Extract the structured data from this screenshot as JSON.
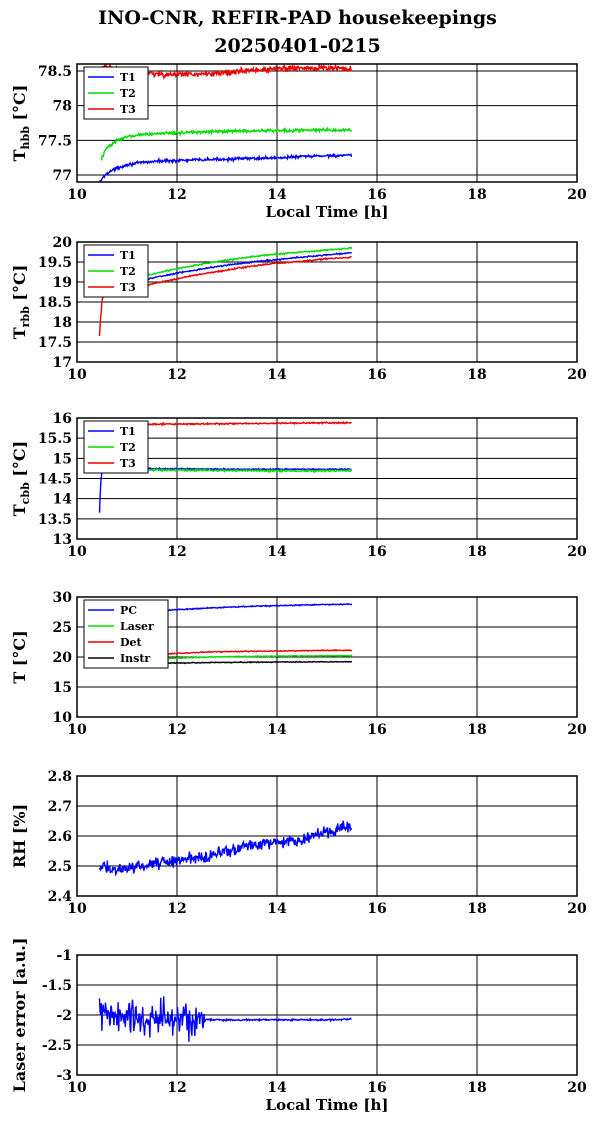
{
  "title": "INO-CNR, REFIR-PAD housekeepings",
  "subtitle": "20250401-0215",
  "chart_data": [
    {
      "type": "line",
      "ylabel": "T_hbb [°C]",
      "ylabel_main": "T",
      "ylabel_sub": "hbb",
      "ylabel_unit": " [°C]",
      "xlabel": "Local Time [h]",
      "xlim": [
        10,
        20
      ],
      "ylim": [
        76.9,
        78.6
      ],
      "xticks": [
        "10",
        "12",
        "14",
        "16",
        "18",
        "20"
      ],
      "yticks": [
        {
          "v": 77,
          "label": "77"
        },
        {
          "v": 77.5,
          "label": "77.5"
        },
        {
          "v": 78,
          "label": "78"
        },
        {
          "v": 78.5,
          "label": "78.5"
        }
      ],
      "grid": true,
      "legend": "top-left",
      "series": [
        {
          "name": "T1",
          "color": "#0000ff",
          "noise": 0.015,
          "x": [
            10.45,
            10.6,
            10.8,
            11.0,
            11.3,
            11.6,
            12.0,
            12.5,
            13.0,
            14.0,
            15.0,
            15.5
          ],
          "y": [
            76.9,
            77.03,
            77.1,
            77.15,
            77.18,
            77.2,
            77.21,
            77.22,
            77.23,
            77.25,
            77.28,
            77.28
          ]
        },
        {
          "name": "T2",
          "color": "#00dd00",
          "noise": 0.015,
          "x": [
            10.48,
            10.6,
            10.8,
            11.0,
            11.3,
            11.6,
            12.0,
            12.5,
            13.0,
            14.0,
            15.0,
            15.5
          ],
          "y": [
            77.22,
            77.4,
            77.5,
            77.55,
            77.58,
            77.6,
            77.61,
            77.62,
            77.63,
            77.64,
            77.65,
            77.65
          ]
        },
        {
          "name": "T3",
          "color": "#ee0000",
          "noise": 0.03,
          "x": [
            10.5,
            11.0,
            11.5,
            12.0,
            12.5,
            13.0,
            13.5,
            14.0,
            14.5,
            15.0,
            15.5
          ],
          "y": [
            78.56,
            78.5,
            78.46,
            78.45,
            78.45,
            78.48,
            78.51,
            78.53,
            78.54,
            78.54,
            78.53
          ]
        }
      ]
    },
    {
      "type": "line",
      "ylabel": "T_rbb [°C]",
      "ylabel_main": "T",
      "ylabel_sub": "rbb",
      "ylabel_unit": " [°C]",
      "xlabel": "",
      "xlim": [
        10,
        20
      ],
      "ylim": [
        17,
        20
      ],
      "xticks": [
        "10",
        "12",
        "14",
        "16",
        "18",
        "20"
      ],
      "yticks": [
        {
          "v": 17,
          "label": "17"
        },
        {
          "v": 17.5,
          "label": "17.5"
        },
        {
          "v": 18,
          "label": "18"
        },
        {
          "v": 18.5,
          "label": "18.5"
        },
        {
          "v": 19,
          "label": "19"
        },
        {
          "v": 19.5,
          "label": "19.5"
        },
        {
          "v": 20,
          "label": "20"
        }
      ],
      "grid": true,
      "legend": "top-left",
      "series": [
        {
          "name": "T1",
          "color": "#0000ff",
          "noise": 0.012,
          "x": [
            10.48,
            10.5,
            11.0,
            11.5,
            12.0,
            12.5,
            13.0,
            13.5,
            14.0,
            14.5,
            15.0,
            15.5
          ],
          "y": [
            18.7,
            18.85,
            18.95,
            19.1,
            19.22,
            19.33,
            19.42,
            19.5,
            19.56,
            19.62,
            19.68,
            19.73
          ]
        },
        {
          "name": "T2",
          "color": "#00dd00",
          "noise": 0.012,
          "x": [
            10.48,
            10.5,
            11.0,
            11.5,
            12.0,
            12.5,
            13.0,
            13.5,
            14.0,
            14.5,
            15.0,
            15.5
          ],
          "y": [
            18.75,
            18.9,
            19.05,
            19.2,
            19.33,
            19.45,
            19.55,
            19.63,
            19.7,
            19.75,
            19.8,
            19.85
          ]
        },
        {
          "name": "T3",
          "color": "#ee0000",
          "noise": 0.012,
          "x": [
            10.45,
            10.47,
            10.49,
            10.5,
            10.55,
            11.0,
            11.5,
            12.0,
            12.5,
            13.0,
            13.5,
            14.0,
            14.5,
            15.0,
            15.5
          ],
          "y": [
            17.65,
            18.1,
            18.3,
            18.55,
            18.7,
            18.8,
            18.95,
            19.08,
            19.2,
            19.3,
            19.4,
            19.47,
            19.52,
            19.58,
            19.62
          ]
        }
      ]
    },
    {
      "type": "line",
      "ylabel": "T_cbb [°C]",
      "ylabel_main": "T",
      "ylabel_sub": "cbb",
      "ylabel_unit": " [°C]",
      "xlabel": "",
      "xlim": [
        10,
        20
      ],
      "ylim": [
        13,
        16
      ],
      "xticks": [
        "10",
        "12",
        "14",
        "16",
        "18",
        "20"
      ],
      "yticks": [
        {
          "v": 13,
          "label": "13"
        },
        {
          "v": 13.5,
          "label": "13.5"
        },
        {
          "v": 14,
          "label": "14"
        },
        {
          "v": 14.5,
          "label": "14.5"
        },
        {
          "v": 15,
          "label": "15"
        },
        {
          "v": 15.5,
          "label": "15.5"
        },
        {
          "v": 16,
          "label": "16"
        }
      ],
      "grid": true,
      "legend": "top-left",
      "series": [
        {
          "name": "T1",
          "color": "#0000ff",
          "noise": 0.01,
          "x": [
            10.45,
            10.47,
            10.49,
            10.52,
            11.0,
            12.0,
            13.0,
            14.0,
            15.0,
            15.5
          ],
          "y": [
            13.65,
            14.3,
            14.6,
            14.75,
            14.75,
            14.74,
            14.73,
            14.73,
            14.73,
            14.73
          ]
        },
        {
          "name": "T2",
          "color": "#00dd00",
          "noise": 0.015,
          "x": [
            10.5,
            11.0,
            12.0,
            13.0,
            14.0,
            15.0,
            15.5
          ],
          "y": [
            14.74,
            14.72,
            14.71,
            14.7,
            14.69,
            14.69,
            14.69
          ]
        },
        {
          "name": "T3",
          "color": "#ee0000",
          "noise": 0.012,
          "x": [
            10.5,
            11.0,
            12.0,
            13.0,
            14.0,
            15.0,
            15.5
          ],
          "y": [
            15.83,
            15.84,
            15.85,
            15.86,
            15.87,
            15.88,
            15.88
          ]
        }
      ]
    },
    {
      "type": "line",
      "ylabel": "T [°C]",
      "ylabel_main": "T [°C]",
      "ylabel_sub": "",
      "ylabel_unit": "",
      "xlabel": "",
      "xlim": [
        10,
        20
      ],
      "ylim": [
        10,
        30
      ],
      "xticks": [
        "10",
        "12",
        "14",
        "16",
        "18",
        "20"
      ],
      "yticks": [
        {
          "v": 10,
          "label": "10"
        },
        {
          "v": 15,
          "label": "15"
        },
        {
          "v": 20,
          "label": "20"
        },
        {
          "v": 25,
          "label": "25"
        },
        {
          "v": 30,
          "label": "30"
        }
      ],
      "grid": true,
      "legend": "top-left",
      "series": [
        {
          "name": "PC",
          "color": "#0000ff",
          "noise": 0.06,
          "x": [
            11.3,
            11.5,
            12.0,
            12.5,
            13.0,
            13.5,
            14.0,
            14.5,
            15.0,
            15.5
          ],
          "y": [
            27.4,
            27.6,
            27.9,
            28.1,
            28.3,
            28.45,
            28.55,
            28.65,
            28.75,
            28.8
          ]
        },
        {
          "name": "Laser",
          "color": "#00dd00",
          "noise": 0.05,
          "x": [
            11.3,
            11.5,
            12.0,
            12.5,
            13.0,
            14.0,
            15.0,
            15.5
          ],
          "y": [
            19.4,
            19.6,
            19.8,
            19.95,
            20.05,
            20.15,
            20.2,
            20.2
          ]
        },
        {
          "name": "Det",
          "color": "#ee0000",
          "noise": 0.05,
          "x": [
            11.3,
            11.5,
            12.0,
            12.5,
            13.0,
            14.0,
            15.0,
            15.5
          ],
          "y": [
            20.2,
            20.4,
            20.6,
            20.8,
            20.9,
            21.0,
            21.1,
            21.1
          ]
        },
        {
          "name": "Instr",
          "color": "#000000",
          "noise": 0.05,
          "x": [
            11.3,
            12.0,
            12.5,
            13.0,
            14.0,
            15.0,
            15.5
          ],
          "y": [
            18.9,
            19.0,
            19.05,
            19.1,
            19.15,
            19.2,
            19.2
          ]
        }
      ]
    },
    {
      "type": "line",
      "ylabel": "RH [%]",
      "ylabel_main": "RH [%]",
      "ylabel_sub": "",
      "ylabel_unit": "",
      "xlabel": "",
      "xlim": [
        10,
        20
      ],
      "ylim": [
        2.4,
        2.8
      ],
      "xticks": [
        "10",
        "12",
        "14",
        "16",
        "18",
        "20"
      ],
      "yticks": [
        {
          "v": 2.4,
          "label": "2.4"
        },
        {
          "v": 2.5,
          "label": "2.5"
        },
        {
          "v": 2.6,
          "label": "2.6"
        },
        {
          "v": 2.7,
          "label": "2.7"
        },
        {
          "v": 2.8,
          "label": "2.8"
        }
      ],
      "grid": true,
      "legend": "none",
      "series": [
        {
          "name": "",
          "color": "#0000ff",
          "noise": 0.014,
          "x": [
            10.45,
            10.7,
            11.0,
            11.3,
            11.6,
            12.0,
            12.5,
            13.0,
            13.5,
            14.0,
            14.5,
            15.0,
            15.3,
            15.5
          ],
          "y": [
            2.5,
            2.49,
            2.49,
            2.5,
            2.51,
            2.52,
            2.53,
            2.55,
            2.57,
            2.58,
            2.59,
            2.61,
            2.63,
            2.63
          ]
        }
      ]
    },
    {
      "type": "line",
      "ylabel": "Laser error [a.u.]",
      "ylabel_main": "Laser error [a.u.]",
      "ylabel_sub": "",
      "ylabel_unit": "",
      "xlabel": "Local Time [h]",
      "xlim": [
        10,
        20
      ],
      "ylim": [
        -3,
        -1
      ],
      "xticks": [
        "10",
        "12",
        "14",
        "16",
        "18",
        "20"
      ],
      "yticks": [
        {
          "v": -3,
          "label": "-3"
        },
        {
          "v": -2.5,
          "label": "-2.5"
        },
        {
          "v": -2,
          "label": "-2"
        },
        {
          "v": -1.5,
          "label": "-1.5"
        },
        {
          "v": -1,
          "label": "-1"
        }
      ],
      "grid": true,
      "legend": "none",
      "series": [
        {
          "name": "",
          "color": "#0000ff",
          "noise": 0.22,
          "noise_until": 12.55,
          "noise_after": 0.01,
          "x": [
            10.45,
            11.0,
            11.5,
            12.0,
            12.55,
            12.6,
            13.0,
            14.0,
            15.0,
            15.5
          ],
          "y": [
            -2.0,
            -2.05,
            -2.1,
            -2.05,
            -2.1,
            -2.08,
            -2.08,
            -2.08,
            -2.08,
            -2.07
          ]
        }
      ]
    }
  ]
}
